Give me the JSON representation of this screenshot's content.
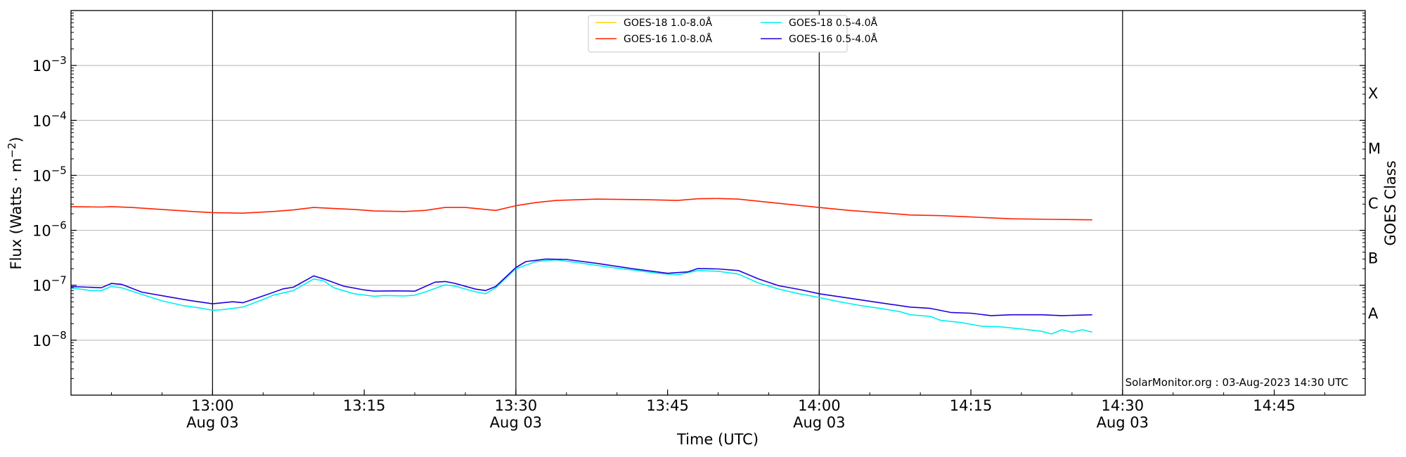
{
  "chart_data": {
    "type": "line",
    "xlabel": "Time (UTC)",
    "ylabel_main": "Flux (Watts · m",
    "ylabel_sup": "−2",
    "ylabel_end": ")",
    "yscale": "log",
    "ylim": [
      1e-09,
      0.01
    ],
    "xlim": [
      "12:46",
      "14:54"
    ],
    "x_ticks": [
      {
        "time": "13:00",
        "label": "13:00",
        "sublabel": "Aug 03",
        "vline": true
      },
      {
        "time": "13:15",
        "label": "13:15",
        "sublabel": "",
        "vline": false
      },
      {
        "time": "13:30",
        "label": "13:30",
        "sublabel": "Aug 03",
        "vline": true
      },
      {
        "time": "13:45",
        "label": "13:45",
        "sublabel": "",
        "vline": false
      },
      {
        "time": "14:00",
        "label": "14:00",
        "sublabel": "Aug 03",
        "vline": true
      },
      {
        "time": "14:15",
        "label": "14:15",
        "sublabel": "",
        "vline": false
      },
      {
        "time": "14:30",
        "label": "14:30",
        "sublabel": "Aug 03",
        "vline": true
      },
      {
        "time": "14:45",
        "label": "14:45",
        "sublabel": "",
        "vline": false
      }
    ],
    "y_ticks": [
      {
        "value": 0.001,
        "base": "10",
        "exp": "−3"
      },
      {
        "value": 0.0001,
        "base": "10",
        "exp": "−4"
      },
      {
        "value": 1e-05,
        "base": "10",
        "exp": "−5"
      },
      {
        "value": 1e-06,
        "base": "10",
        "exp": "−6"
      },
      {
        "value": 1e-07,
        "base": "10",
        "exp": "−7"
      },
      {
        "value": 1e-08,
        "base": "10",
        "exp": "−8"
      }
    ],
    "grid": "horizontal",
    "legend_position": "top-center",
    "right_axis": {
      "label": "GOES Class",
      "classes": [
        {
          "name": "X",
          "value": 0.000316
        },
        {
          "name": "M",
          "value": 3.16e-05
        },
        {
          "name": "C",
          "value": 3.16e-06
        },
        {
          "name": "B",
          "value": 3.16e-07
        },
        {
          "name": "A",
          "value": 3.16e-08
        }
      ]
    },
    "annotation": "SolarMonitor.org : 03-Aug-2023 14:30 UTC",
    "series": [
      {
        "name": "GOES-18 1.0-8.0Å",
        "color": "#ffd700",
        "x": [],
        "y": []
      },
      {
        "name": "GOES-16 1.0-8.0Å",
        "color": "#ff2200",
        "x": [
          "12:46",
          "12:49",
          "12:50",
          "12:52",
          "12:55",
          "12:58",
          "13:00",
          "13:03",
          "13:06",
          "13:08",
          "13:10",
          "13:11",
          "13:14",
          "13:16",
          "13:19",
          "13:21",
          "13:23",
          "13:25",
          "13:28",
          "13:30",
          "13:32",
          "13:34",
          "13:38",
          "13:43",
          "13:46",
          "13:48",
          "13:50",
          "13:52",
          "13:56",
          "14:00",
          "14:03",
          "14:06",
          "14:09",
          "14:12",
          "14:15",
          "14:19",
          "14:23",
          "14:27"
        ],
        "y": [
          2.7e-06,
          2.65e-06,
          2.7e-06,
          2.6e-06,
          2.4e-06,
          2.2e-06,
          2.1e-06,
          2.05e-06,
          2.2e-06,
          2.35e-06,
          2.6e-06,
          2.55e-06,
          2.4e-06,
          2.25e-06,
          2.2e-06,
          2.3e-06,
          2.6e-06,
          2.6e-06,
          2.3e-06,
          2.8e-06,
          3.2e-06,
          3.5e-06,
          3.7e-06,
          3.6e-06,
          3.5e-06,
          3.75e-06,
          3.8e-06,
          3.7e-06,
          3.1e-06,
          2.6e-06,
          2.3e-06,
          2.1e-06,
          1.9e-06,
          1.85e-06,
          1.75e-06,
          1.62e-06,
          1.58e-06,
          1.55e-06
        ]
      },
      {
        "name": "GOES-18 0.5-4.0Å",
        "color": "#00f0f0",
        "x": [
          "12:46",
          "12:48",
          "12:49",
          "12:50",
          "12:51",
          "12:53",
          "12:55",
          "12:57",
          "12:59",
          "13:00",
          "13:01",
          "13:02",
          "13:03",
          "13:05",
          "13:06",
          "13:08",
          "13:10",
          "13:11",
          "13:12",
          "13:14",
          "13:16",
          "13:17",
          "13:19",
          "13:20",
          "13:21",
          "13:23",
          "13:24",
          "13:26",
          "13:27",
          "13:28",
          "13:30",
          "13:32",
          "13:33",
          "13:34",
          "13:36",
          "13:38",
          "13:40",
          "13:42",
          "13:44",
          "13:46",
          "13:48",
          "13:50",
          "13:52",
          "13:54",
          "13:56",
          "13:58",
          "14:00",
          "14:02",
          "14:04",
          "14:06",
          "14:08",
          "14:09",
          "14:11",
          "14:12",
          "14:14",
          "14:16",
          "14:18",
          "14:20",
          "14:22",
          "14:23",
          "14:24",
          "14:25",
          "14:26",
          "14:27"
        ],
        "y": [
          9e-08,
          8e-08,
          8e-08,
          9.5e-08,
          9e-08,
          6.8e-08,
          5.2e-08,
          4.3e-08,
          3.8e-08,
          3.5e-08,
          3.6e-08,
          3.8e-08,
          4e-08,
          5.5e-08,
          6.6e-08,
          8e-08,
          1.3e-07,
          1.2e-07,
          9e-08,
          7e-08,
          6.3e-08,
          6.5e-08,
          6.4e-08,
          6.6e-08,
          7.5e-08,
          1.02e-07,
          9.6e-08,
          7.6e-08,
          7e-08,
          9e-08,
          2e-07,
          2.7e-07,
          2.8e-07,
          2.9e-07,
          2.6e-07,
          2.3e-07,
          2.05e-07,
          1.85e-07,
          1.65e-07,
          1.55e-07,
          1.85e-07,
          1.8e-07,
          1.6e-07,
          1.1e-07,
          8.5e-08,
          7e-08,
          6e-08,
          5e-08,
          4.3e-08,
          3.8e-08,
          3.3e-08,
          2.9e-08,
          2.7e-08,
          2.3e-08,
          2.1e-08,
          1.8e-08,
          1.75e-08,
          1.6e-08,
          1.45e-08,
          1.3e-08,
          1.55e-08,
          1.4e-08,
          1.55e-08,
          1.4e-08
        ]
      },
      {
        "name": "GOES-16 0.5-4.0Å",
        "color": "#2200dd",
        "x": [
          "12:46",
          "12:49",
          "12:50",
          "12:51",
          "12:53",
          "12:56",
          "12:58",
          "13:00",
          "13:02",
          "13:03",
          "13:05",
          "13:07",
          "13:08",
          "13:10",
          "13:11",
          "13:13",
          "13:15",
          "13:16",
          "13:18",
          "13:20",
          "13:22",
          "13:23",
          "13:24",
          "13:26",
          "13:27",
          "13:28",
          "13:30",
          "13:31",
          "13:33",
          "13:35",
          "13:38",
          "13:42",
          "13:45",
          "13:47",
          "13:48",
          "13:50",
          "13:52",
          "13:54",
          "13:56",
          "13:58",
          "14:00",
          "14:03",
          "14:06",
          "14:09",
          "14:11",
          "14:13",
          "14:15",
          "14:17",
          "14:19",
          "14:22",
          "14:24",
          "14:27"
        ],
        "y": [
          9.5e-08,
          9e-08,
          1.08e-07,
          1.04e-07,
          7.5e-08,
          6e-08,
          5.2e-08,
          4.6e-08,
          5e-08,
          4.8e-08,
          6.4e-08,
          8.6e-08,
          9.2e-08,
          1.48e-07,
          1.3e-07,
          9.6e-08,
          8.2e-08,
          7.8e-08,
          7.9e-08,
          7.8e-08,
          1.14e-07,
          1.17e-07,
          1.08e-07,
          8.5e-08,
          8e-08,
          9.5e-08,
          2.1e-07,
          2.7e-07,
          3e-07,
          2.95e-07,
          2.5e-07,
          1.95e-07,
          1.65e-07,
          1.75e-07,
          2.02e-07,
          1.98e-07,
          1.85e-07,
          1.3e-07,
          9.8e-08,
          8.4e-08,
          7e-08,
          5.8e-08,
          4.8e-08,
          4e-08,
          3.8e-08,
          3.2e-08,
          3.1e-08,
          2.8e-08,
          2.9e-08,
          2.9e-08,
          2.8e-08,
          2.9e-08
        ]
      }
    ]
  }
}
